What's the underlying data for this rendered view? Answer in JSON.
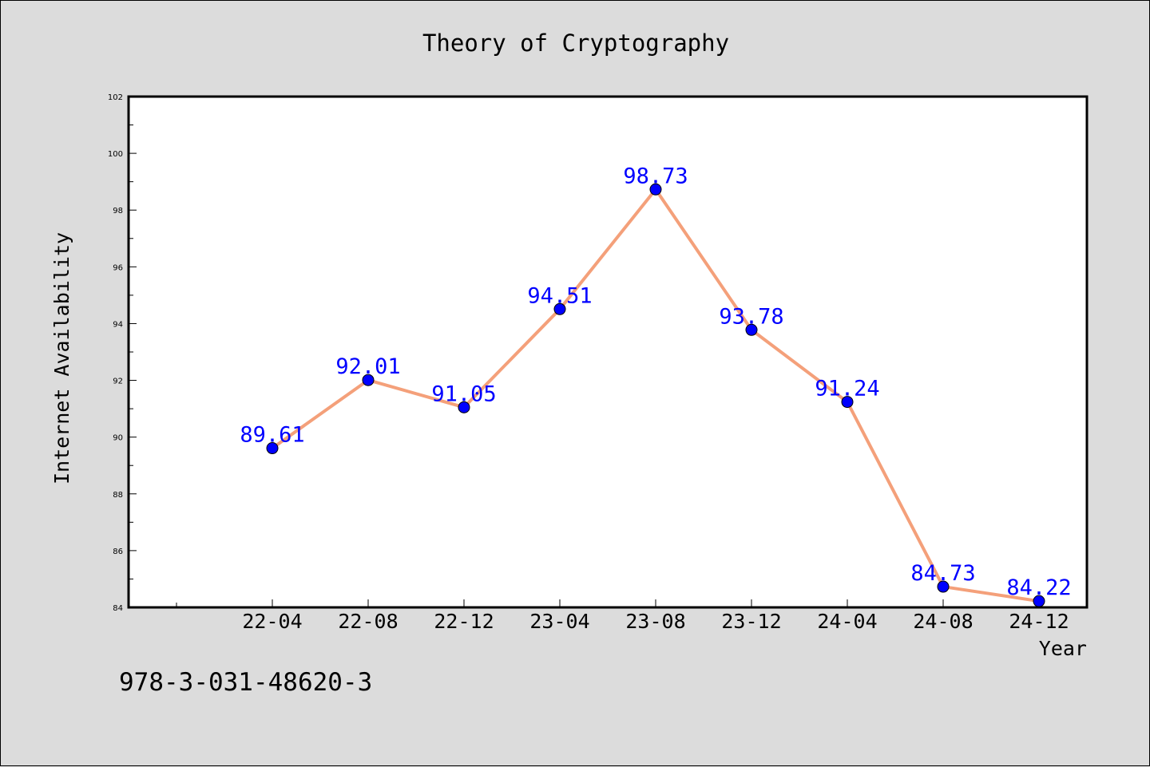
{
  "chart_data": {
    "type": "line",
    "title": "Theory of Cryptography",
    "xlabel": "Year",
    "ylabel": "Internet Availability",
    "categories": [
      "22-04",
      "22-08",
      "22-12",
      "23-04",
      "23-08",
      "23-12",
      "24-04",
      "24-08",
      "24-12"
    ],
    "series": [
      {
        "values": [
          89.61,
          92.01,
          91.05,
          94.51,
          98.73,
          93.78,
          91.24,
          84.73,
          84.22
        ],
        "data_labels": [
          "89.61",
          "92.01",
          "91.05",
          "94.51",
          "98.73",
          "93.78",
          "91.24",
          "84.73",
          "84.22"
        ],
        "line_color": "#f4a07a",
        "marker_color": "#0000ff"
      }
    ],
    "ylim": [
      84,
      102
    ],
    "yticks": [
      "84",
      "86",
      "88",
      "90",
      "92",
      "94",
      "96",
      "98",
      "100",
      "102"
    ],
    "grid": false,
    "label_color": "#0000ff"
  },
  "footnote": "978-3-031-48620-3"
}
